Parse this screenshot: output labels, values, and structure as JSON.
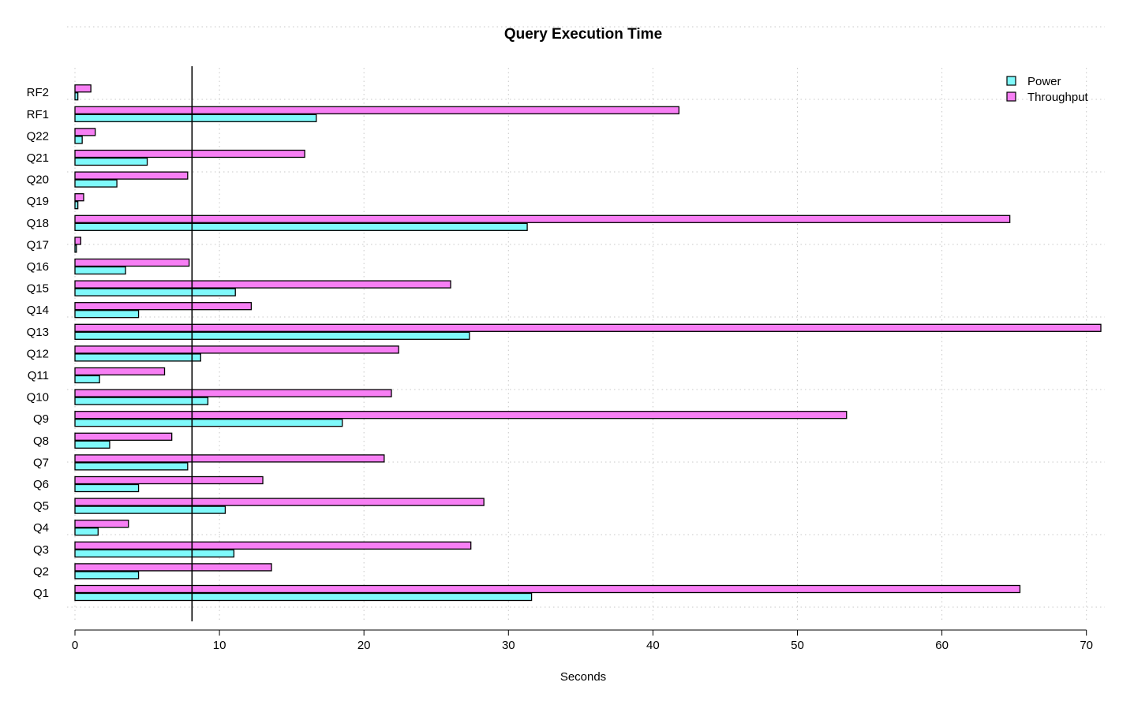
{
  "chart_data": {
    "type": "bar",
    "orientation": "horizontal",
    "title": "Query Execution Time",
    "xlabel": "Seconds",
    "ylabel": "",
    "xlim": [
      0,
      71
    ],
    "x_ticks": [
      0,
      10,
      20,
      30,
      40,
      50,
      60,
      70
    ],
    "grid": true,
    "legend_position": "top-right",
    "reference_line": 8.1,
    "categories": [
      "Q1",
      "Q2",
      "Q3",
      "Q4",
      "Q5",
      "Q6",
      "Q7",
      "Q8",
      "Q9",
      "Q10",
      "Q11",
      "Q12",
      "Q13",
      "Q14",
      "Q15",
      "Q16",
      "Q17",
      "Q18",
      "Q19",
      "Q20",
      "Q21",
      "Q22",
      "RF1",
      "RF2"
    ],
    "series": [
      {
        "name": "Power",
        "color": "#7ff9fb",
        "values": [
          31.6,
          4.4,
          11.0,
          1.6,
          10.4,
          4.4,
          7.8,
          2.4,
          18.5,
          9.2,
          1.7,
          8.7,
          27.3,
          4.4,
          11.1,
          3.5,
          0.1,
          31.3,
          0.2,
          2.9,
          5.0,
          0.5,
          16.7,
          0.2
        ]
      },
      {
        "name": "Throughput",
        "color": "#f77ff4",
        "values": [
          65.4,
          13.6,
          27.4,
          3.7,
          28.3,
          13.0,
          21.4,
          6.7,
          53.4,
          21.9,
          6.2,
          22.4,
          71.0,
          12.2,
          26.0,
          7.9,
          0.4,
          64.7,
          0.6,
          7.8,
          15.9,
          1.4,
          41.8,
          1.1
        ]
      }
    ]
  }
}
